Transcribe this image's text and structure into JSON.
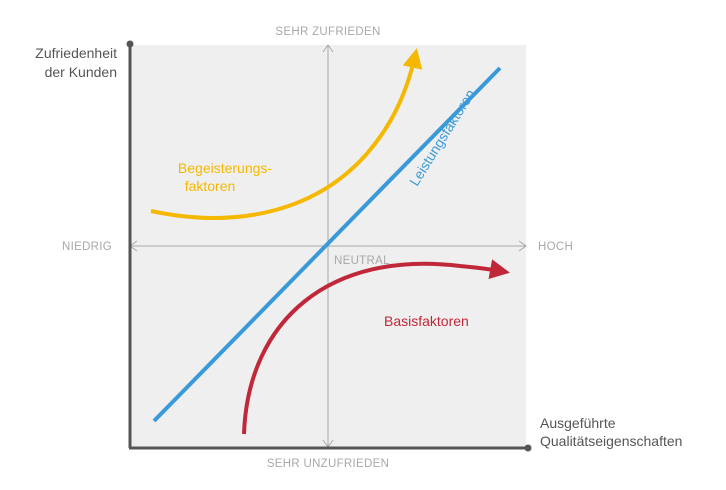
{
  "axes": {
    "y_title_line1": "Zufriedenheit",
    "y_title_line2": "der Kunden",
    "x_title_line1": "Ausgeführte",
    "x_title_line2": "Qualitätseigenschaften"
  },
  "reference_labels": {
    "top": "SEHR ZUFRIEDEN",
    "bottom": "SEHR UNZUFRIEDEN",
    "left": "NIEDRIG",
    "right": "HOCH",
    "center": "NEUTRAL"
  },
  "curves": {
    "excitement": {
      "label_line1": "Begeisterungs-",
      "label_line2": "faktoren",
      "color": "#f5b800"
    },
    "performance": {
      "label": "Leistungsfaktoren",
      "color": "#3a9ad9"
    },
    "basic": {
      "label": "Basisfaktoren",
      "color": "#c0283a"
    }
  },
  "colors": {
    "background_panel": "#efefef",
    "axis": "#555555",
    "reference": "#a8a8a8"
  }
}
